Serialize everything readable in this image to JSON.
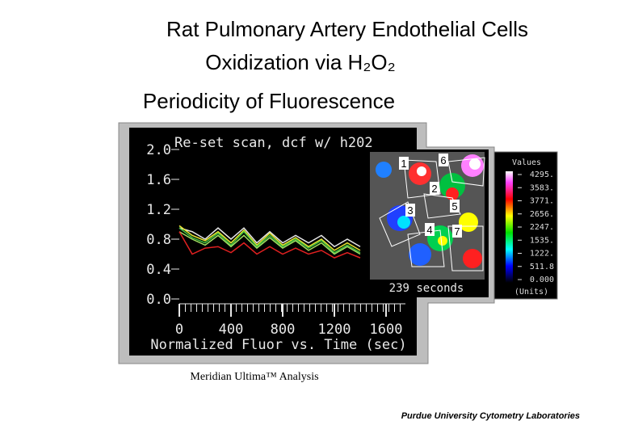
{
  "slide": {
    "title_lines": [
      "Rat Pulmonary Artery Endothelial Cells",
      "Oxidization via H₂O₂",
      "Periodicity of Fluorescence"
    ],
    "caption": "Meridian Ultima™ Analysis",
    "footer": "Purdue University Cytometry Laboratories"
  },
  "image_panel": {
    "cell_labels": [
      "1",
      "2",
      "3",
      "4",
      "5",
      "6",
      "7"
    ],
    "time_label": "239 seconds",
    "scale_title": "Values",
    "scale_labels": [
      "4295.",
      "3583.",
      "3771.",
      "2656.",
      "2247.",
      "1535.",
      "1222.",
      "511.8",
      "0.000"
    ],
    "scale_unit": "(Units)"
  },
  "chart_data": {
    "type": "line",
    "title": "Re-set scan, dcf w/ h202",
    "xlabel": "Normalized Fluor vs. Time (sec)",
    "x": [
      0,
      100,
      200,
      300,
      400,
      500,
      600,
      700,
      800,
      900,
      1000,
      1100,
      1200,
      1300,
      1400
    ],
    "series": [
      {
        "color": "#e6e6e6",
        "values": [
          0.95,
          0.9,
          0.8,
          0.95,
          0.8,
          0.95,
          0.75,
          0.9,
          0.75,
          0.85,
          0.75,
          0.85,
          0.7,
          0.8,
          0.7
        ]
      },
      {
        "color": "#e8e830",
        "values": [
          0.98,
          0.85,
          0.78,
          0.9,
          0.75,
          0.92,
          0.72,
          0.88,
          0.72,
          0.82,
          0.7,
          0.8,
          0.65,
          0.75,
          0.65
        ]
      },
      {
        "color": "#40c040",
        "values": [
          0.95,
          0.82,
          0.75,
          0.88,
          0.72,
          0.9,
          0.7,
          0.85,
          0.7,
          0.8,
          0.68,
          0.78,
          0.62,
          0.72,
          0.62
        ]
      },
      {
        "color": "#a0e060",
        "values": [
          0.9,
          0.8,
          0.72,
          0.85,
          0.7,
          0.85,
          0.68,
          0.82,
          0.68,
          0.78,
          0.65,
          0.75,
          0.6,
          0.7,
          0.6
        ]
      },
      {
        "color": "#e02020",
        "values": [
          0.9,
          0.6,
          0.68,
          0.7,
          0.62,
          0.75,
          0.6,
          0.7,
          0.6,
          0.68,
          0.6,
          0.65,
          0.55,
          0.62,
          0.55
        ]
      }
    ],
    "xlim": [
      0,
      1750
    ],
    "ylim": [
      0,
      2
    ],
    "xticks": [
      0,
      400,
      800,
      1200,
      1600
    ],
    "yticks": [
      {
        "value": 0,
        "label": "0.0"
      },
      0.4,
      0.8,
      1.2,
      1.6,
      {
        "value": 2,
        "label": "2.0"
      }
    ]
  }
}
